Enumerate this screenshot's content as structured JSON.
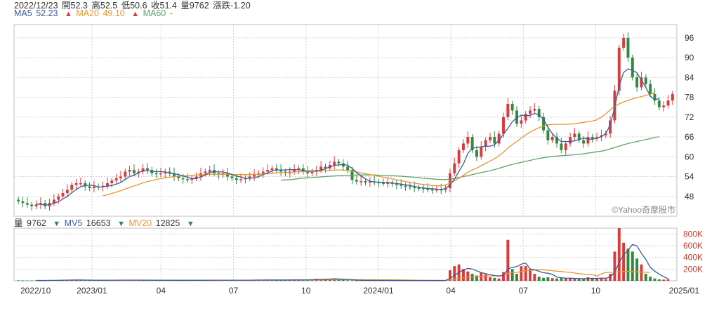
{
  "header": {
    "date": "2022/12/23",
    "open": "開52.3",
    "high": "高52.5",
    "low": "低50.6",
    "close": "收51.4",
    "volume": "量9762",
    "change": "漲跌-1.20"
  },
  "ma_legend": [
    {
      "label": "MA5",
      "value": "52.23",
      "arrow": "▲"
    },
    {
      "label": "MA20",
      "value": "49.10",
      "arrow": "▲"
    },
    {
      "label": "MA60",
      "value": "-",
      "arrow": ""
    }
  ],
  "vol_legend": [
    {
      "label": "量",
      "value": "9762",
      "arrow": "▼"
    },
    {
      "label": "MV5",
      "value": "16653",
      "arrow": "▼"
    },
    {
      "label": "MV20",
      "value": "12825",
      "arrow": "▼"
    }
  ],
  "watermark": "©Yahoo奇摩股市",
  "colors": {
    "up": "#d93b3b",
    "down": "#2e8b3e",
    "ma5": "#3c5a9a",
    "ma20": "#e8952e",
    "ma60": "#5aa567",
    "grid": "#d0d0d0"
  },
  "chart_data": [
    {
      "type": "candlestick",
      "y_ticks": [
        48,
        54,
        60,
        66,
        72,
        78,
        84,
        90,
        96
      ],
      "ylim": [
        42,
        100
      ],
      "x_ticks": [
        "2022/10",
        "2023/01",
        "04",
        "07",
        "10",
        "2024/01",
        "04",
        "07",
        "10",
        "2025/01"
      ],
      "grid": true,
      "close": [
        46.5,
        46,
        45.5,
        45,
        45.5,
        46,
        45,
        46,
        47,
        48,
        49,
        50,
        51.5,
        52,
        52,
        51,
        50.5,
        51,
        50.8,
        51.2,
        52,
        52.8,
        53.5,
        54,
        55.5,
        56,
        55,
        55.5,
        56.5,
        56,
        55,
        54.8,
        55,
        55.5,
        55,
        54,
        53.5,
        53.2,
        53,
        53.5,
        54,
        55,
        55.5,
        56,
        55,
        54.5,
        55,
        54,
        53.5,
        53,
        53.2,
        53.5,
        54,
        54.5,
        55,
        55.5,
        56,
        56.5,
        56,
        55.5,
        55,
        55.5,
        56,
        56.5,
        55.5,
        55,
        55.5,
        56,
        57,
        56.5,
        57.5,
        58.5,
        58,
        57,
        56,
        53,
        52.5,
        52.6,
        52.2,
        52.5,
        52.3,
        52.1,
        52,
        52.1,
        51.8,
        51.5,
        51.2,
        51,
        50.8,
        50.6,
        50.5,
        50.3,
        50.1,
        50,
        50.1,
        50,
        50.5,
        55,
        58,
        62,
        64,
        66,
        62,
        60,
        63,
        65,
        66,
        64,
        67,
        72,
        76,
        74,
        70,
        71,
        73,
        74,
        74.5,
        72,
        68,
        65,
        66,
        64,
        62,
        64,
        66,
        67,
        65,
        64,
        66,
        65.5,
        66,
        66.5,
        67,
        71,
        80,
        93,
        96,
        90,
        84,
        81,
        84,
        82,
        79,
        77,
        75,
        75.5,
        77,
        79
      ],
      "ma5": [
        null,
        null,
        null,
        null,
        45.7,
        45.6,
        45.4,
        45.5,
        45.9,
        46.4,
        47.2,
        48,
        49.1,
        50.1,
        50.9,
        51.3,
        51.4,
        51.3,
        50.8,
        50.9,
        51.1,
        51.3,
        51.7,
        52.2,
        53.1,
        54,
        54.4,
        55.2,
        55.7,
        55.8,
        55.6,
        55.5,
        55.5,
        55.4,
        55,
        54.9,
        54.6,
        54.2,
        53.8,
        53.4,
        53.4,
        53.9,
        54.5,
        55.3,
        55.5,
        55.4,
        55.4,
        55.1,
        54.6,
        54.1,
        53.9,
        53.4,
        53.5,
        53.6,
        54,
        54.6,
        55.1,
        55.7,
        56,
        56,
        56,
        56.1,
        56.1,
        56.1,
        55.8,
        55.7,
        55.7,
        55.7,
        55.9,
        56.4,
        56.9,
        57.4,
        57.5,
        57.7,
        57.4,
        56.5,
        55.2,
        54.2,
        53.3,
        52.6,
        52.4,
        52.3,
        52.2,
        52.2,
        52.1,
        51.9,
        51.7,
        51.5,
        51.3,
        51,
        50.8,
        50.6,
        50.4,
        50.3,
        50.2,
        50.1,
        50.4,
        51.5,
        53.2,
        55.6,
        57.8,
        61,
        62.6,
        62.8,
        63,
        63.2,
        63.2,
        63.6,
        65,
        66.8,
        68.6,
        70.6,
        71.8,
        72.6,
        72.4,
        72.5,
        73.1,
        72.7,
        71.4,
        68.9,
        67,
        65.6,
        64.6,
        64.6,
        64.6,
        64.8,
        65.2,
        65.6,
        65.4,
        65.3,
        65.6,
        66.1,
        67,
        69.7,
        74.9,
        81.4,
        85.5,
        86.6,
        86.2,
        85.4,
        83.2,
        81,
        78.4,
        77.2,
        77.6
      ],
      "ma20": [
        null,
        null,
        null,
        null,
        null,
        null,
        null,
        null,
        null,
        null,
        null,
        null,
        null,
        null,
        null,
        null,
        null,
        null,
        null,
        48.2,
        48.5,
        48.9,
        49.3,
        49.7,
        50.2,
        50.7,
        51.2,
        51.6,
        52.1,
        52.5,
        52.8,
        53.1,
        53.4,
        53.6,
        53.8,
        54,
        54.1,
        54.2,
        54.3,
        54.4,
        54.5,
        54.5,
        54.6,
        54.7,
        54.7,
        54.7,
        54.7,
        54.7,
        54.6,
        54.6,
        54.6,
        54.6,
        54.6,
        54.7,
        54.7,
        54.8,
        54.9,
        55,
        55.1,
        55.2,
        55.2,
        55.3,
        55.4,
        55.5,
        55.5,
        55.5,
        55.5,
        55.6,
        55.7,
        55.8,
        55.9,
        56,
        56,
        56,
        55.8,
        55.6,
        55.4,
        55.1,
        54.9,
        54.6,
        54.4,
        54.1,
        53.8,
        53.6,
        53.3,
        53,
        52.8,
        52.5,
        52.3,
        52,
        51.8,
        51.6,
        51.5,
        51.3,
        51.2,
        51.2,
        51.5,
        52,
        52.7,
        53.5,
        54.4,
        55.3,
        56,
        56.6,
        57.3,
        58,
        58.7,
        59.4,
        60.3,
        61.4,
        62.6,
        63.7,
        64.6,
        65.6,
        66.6,
        67.5,
        68.2,
        68.8,
        69.3,
        69.7,
        69.8,
        69.8,
        69.8,
        69.8,
        69.9,
        70,
        70.2,
        70.4,
        70.6,
        70.8,
        71.2,
        72,
        73,
        74.2,
        75.3,
        76,
        76.6,
        77.1,
        77.5,
        77.9,
        78.2,
        78.6,
        78.9,
        79.3
      ],
      "ma60": [
        null,
        null,
        null,
        null,
        null,
        null,
        null,
        null,
        null,
        null,
        null,
        null,
        null,
        null,
        null,
        null,
        null,
        null,
        null,
        null,
        null,
        null,
        null,
        null,
        null,
        null,
        null,
        null,
        null,
        null,
        null,
        null,
        null,
        null,
        null,
        null,
        null,
        null,
        null,
        null,
        null,
        null,
        null,
        null,
        null,
        null,
        null,
        null,
        null,
        null,
        null,
        null,
        null,
        null,
        null,
        null,
        null,
        null,
        null,
        52.9,
        53,
        53.1,
        53.2,
        53.4,
        53.5,
        53.6,
        53.7,
        53.8,
        53.9,
        54,
        54.1,
        54.2,
        54.3,
        54.4,
        54.4,
        54.4,
        54.5,
        54.5,
        54.5,
        54.5,
        54.5,
        54.4,
        54.4,
        54.4,
        54.3,
        54.2,
        54.1,
        54,
        53.9,
        53.8,
        53.7,
        53.5,
        53.4,
        53.3,
        53.2,
        53.1,
        53.1,
        53.2,
        53.4,
        53.7,
        54,
        54.3,
        54.6,
        54.9,
        55.2,
        55.5,
        55.8,
        56.1,
        56.5,
        56.9,
        57.3,
        57.7,
        58,
        58.3,
        58.6,
        58.9,
        59.2,
        59.5,
        59.7,
        59.9,
        60.1,
        60.2,
        60.3,
        60.4,
        60.5,
        60.6,
        60.7,
        60.9,
        61.1,
        61.3,
        61.5,
        61.7,
        62,
        62.4,
        62.8,
        63.2,
        63.6,
        64,
        64.3,
        64.6,
        64.9,
        65.2,
        65.5,
        65.8,
        66.1
      ]
    },
    {
      "type": "bar",
      "y_ticks": [
        "200K",
        "400K",
        "600K",
        "800K"
      ],
      "ylim": [
        0,
        900000
      ],
      "volume": [
        8000,
        7000,
        6000,
        6000,
        7000,
        6000,
        6000,
        8000,
        10000,
        12000,
        15000,
        14000,
        16000,
        14000,
        12000,
        11000,
        10000,
        9000,
        9000,
        10000,
        14000,
        12000,
        11000,
        12000,
        12000,
        12000,
        11000,
        11000,
        10000,
        10000,
        9000,
        9000,
        9000,
        10000,
        9000,
        9000,
        8000,
        8000,
        8000,
        9000,
        10000,
        10000,
        10000,
        11000,
        10000,
        10000,
        11000,
        12000,
        10000,
        10000,
        11000,
        12000,
        14000,
        13000,
        14000,
        15000,
        15000,
        15000,
        14000,
        15000,
        15000,
        16000,
        16000,
        17000,
        18000,
        20000,
        24000,
        35000,
        30000,
        28000,
        35000,
        40000,
        22000,
        12000,
        10000,
        9000,
        8000,
        8000,
        8000,
        7000,
        7000,
        6000,
        6000,
        7000,
        6000,
        6000,
        6000,
        5000,
        5000,
        5000,
        6000,
        5000,
        5000,
        4000,
        4000,
        5000,
        10000,
        180000,
        250000,
        280000,
        200000,
        160000,
        120000,
        90000,
        140000,
        110000,
        60000,
        50000,
        40000,
        150000,
        700000,
        200000,
        120000,
        250000,
        250000,
        200000,
        120000,
        70000,
        50000,
        60000,
        45000,
        40000,
        50000,
        40000,
        45000,
        35000,
        30000,
        30000,
        60000,
        50000,
        40000,
        40000,
        30000,
        120000,
        500000,
        900000,
        650000,
        550000,
        500000,
        380000,
        280000,
        120000,
        70000,
        40000,
        25000,
        20000,
        25000
      ],
      "mv5": [
        null,
        null,
        null,
        null,
        6800,
        6400,
        6200,
        6600,
        7400,
        8400,
        10200,
        11800,
        13400,
        14200,
        14200,
        13400,
        12200,
        11200,
        10200,
        9800,
        10400,
        10800,
        11200,
        11800,
        12200,
        11800,
        11600,
        11600,
        11200,
        10800,
        10200,
        9800,
        9600,
        9400,
        9200,
        9200,
        9000,
        8800,
        8400,
        8400,
        8600,
        9000,
        9400,
        10000,
        10200,
        10200,
        10400,
        10800,
        10600,
        10600,
        10800,
        11000,
        11400,
        11800,
        12600,
        13600,
        14200,
        14400,
        14600,
        14800,
        14800,
        15000,
        15200,
        15800,
        16400,
        17400,
        19000,
        23000,
        25400,
        27400,
        30400,
        33600,
        31000,
        27400,
        23800,
        18600,
        12200,
        9400,
        8600,
        8000,
        7600,
        7200,
        7000,
        6800,
        6400,
        6200,
        6200,
        5800,
        5600,
        5400,
        5400,
        5400,
        5200,
        4800,
        4600,
        4600,
        5600,
        40600,
        89800,
        145200,
        184000,
        212000,
        202000,
        170000,
        142000,
        124000,
        104000,
        90000,
        80000,
        90000,
        200000,
        232000,
        242000,
        284000,
        304000,
        204000,
        188000,
        162000,
        138000,
        130000,
        109000,
        65000,
        53000,
        47000,
        44000,
        42000,
        39000,
        36000,
        40000,
        42000,
        42000,
        44000,
        44000,
        66000,
        146000,
        312000,
        442000,
        524000,
        620000,
        596000,
        472000,
        366000,
        230000,
        164000,
        115000,
        71000,
        36000
      ],
      "mv20": [
        null,
        null,
        null,
        null,
        null,
        null,
        null,
        null,
        null,
        null,
        null,
        null,
        null,
        null,
        null,
        null,
        null,
        null,
        null,
        9500,
        9800,
        10000,
        10300,
        10600,
        10900,
        11200,
        11400,
        11600,
        11700,
        11700,
        11600,
        11400,
        11200,
        11000,
        10800,
        10700,
        10600,
        10500,
        10400,
        10300,
        10200,
        10100,
        10000,
        9900,
        9900,
        9900,
        10000,
        10100,
        10200,
        10300,
        10400,
        10600,
        10800,
        11100,
        11400,
        11700,
        12000,
        12300,
        12600,
        12900,
        13200,
        13500,
        13800,
        14100,
        14400,
        14800,
        15200,
        16100,
        16900,
        17600,
        18600,
        19700,
        20000,
        19900,
        19700,
        19500,
        19200,
        18800,
        18500,
        18100,
        17700,
        17200,
        16700,
        16200,
        15700,
        15100,
        14400,
        13300,
        12500,
        11700,
        10500,
        9100,
        8500,
        8300,
        8000,
        7700,
        7500,
        16100,
        28000,
        41500,
        51000,
        58500,
        64300,
        68400,
        75100,
        80300,
        83000,
        85300,
        87000,
        94200,
        129000,
        138700,
        144300,
        156800,
        169000,
        178700,
        184200,
        186700,
        186700,
        180500,
        173000,
        165000,
        158000,
        150000,
        147500,
        133500,
        123000,
        113500,
        106000,
        104500,
        80000,
        120000,
        140000,
        145000,
        150000,
        155000,
        160000,
        160000,
        158000,
        155000,
        150000,
        148000,
        145000
      ]
    }
  ]
}
